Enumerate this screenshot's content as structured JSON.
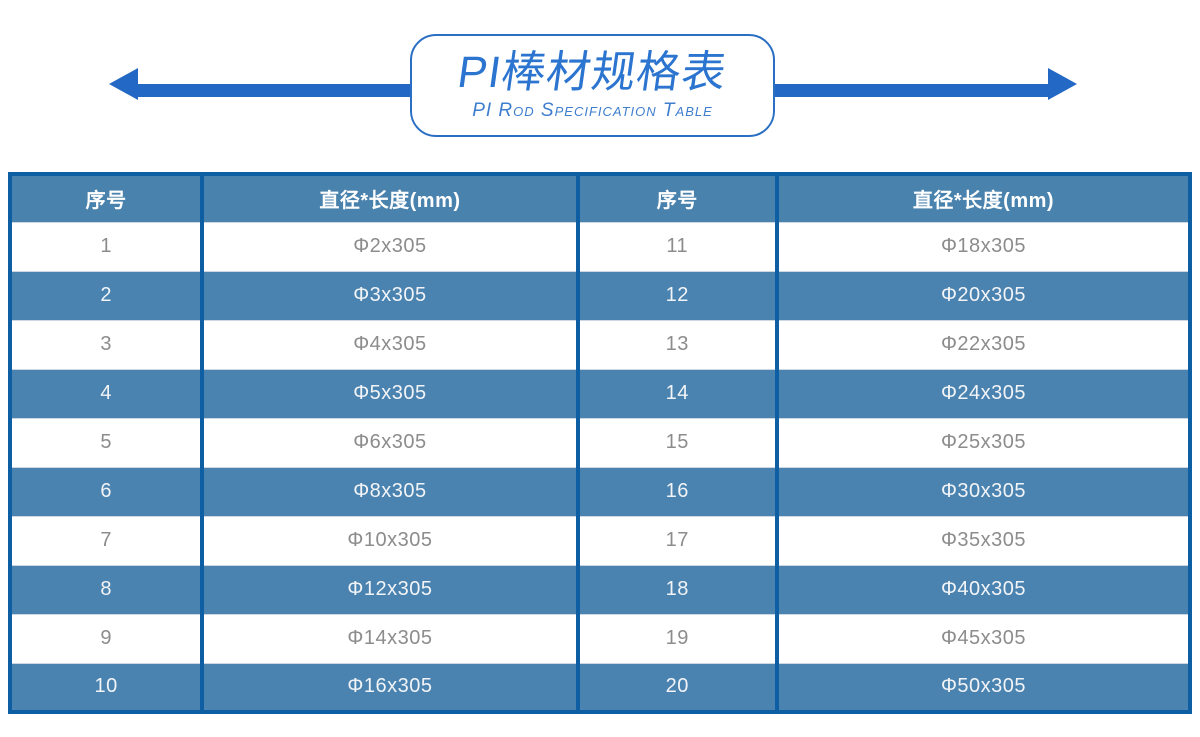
{
  "banner": {
    "title": "PI棒材规格表",
    "subtitle": "PI Rod Specification Table"
  },
  "icons": {
    "left_arrow": "left-arrow",
    "right_arrow": "right-arrow"
  },
  "colors": {
    "arrow_blue": "#2368c4",
    "banner_border_blue": "#2a6fc4",
    "title_blue": "#2b74cf",
    "table_border_blue": "#0d5ea3",
    "header_row_blue": "#4a82ae",
    "alt_row_blue": "#4a83b0",
    "plain_row_text_gray": "#8c8c8c"
  },
  "table": {
    "headers": [
      "序号",
      "直径*长度(mm)",
      "序号",
      "直径*长度(mm)"
    ],
    "rows": [
      [
        "1",
        "Φ2x305",
        "11",
        "Φ18x305"
      ],
      [
        "2",
        "Φ3x305",
        "12",
        "Φ20x305"
      ],
      [
        "3",
        "Φ4x305",
        "13",
        "Φ22x305"
      ],
      [
        "4",
        "Φ5x305",
        "14",
        "Φ24x305"
      ],
      [
        "5",
        "Φ6x305",
        "15",
        "Φ25x305"
      ],
      [
        "6",
        "Φ8x305",
        "16",
        "Φ30x305"
      ],
      [
        "7",
        "Φ10x305",
        "17",
        "Φ35x305"
      ],
      [
        "8",
        "Φ12x305",
        "18",
        "Φ40x305"
      ],
      [
        "9",
        "Φ14x305",
        "19",
        "Φ45x305"
      ],
      [
        "10",
        "Φ16x305",
        "20",
        "Φ50x305"
      ]
    ]
  }
}
